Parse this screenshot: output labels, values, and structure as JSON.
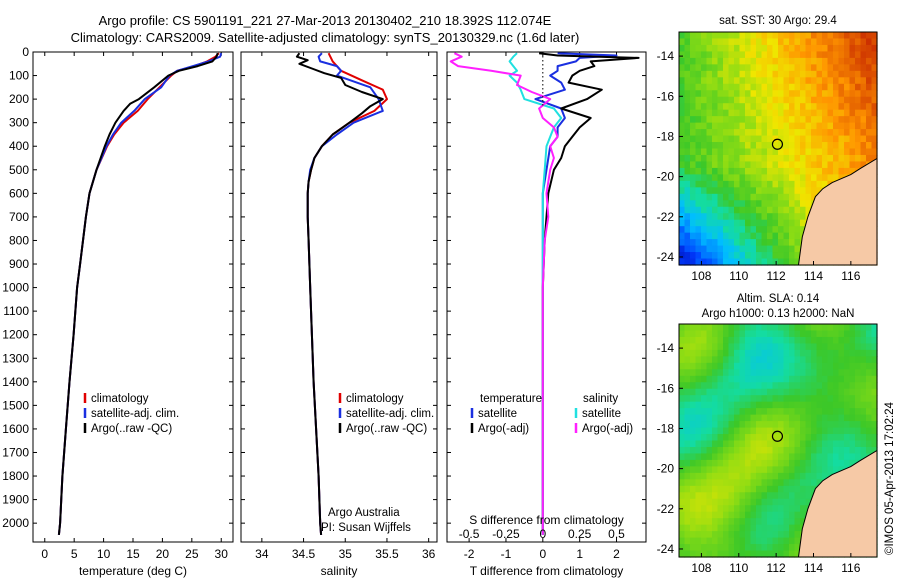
{
  "header": {
    "line1": "Argo profile: CS 5901191_221 27-Mar-2013 20130402_210 18.392S 112.074E",
    "line2": "Climatology: CARS2009. Satellite-adjusted climatology: synTS_20130329.nc (1.6d later)"
  },
  "colors": {
    "clim": "#e00000",
    "sat": "#1a2fe0",
    "argo": "#000000",
    "argo_s_adj": "#ff20ff",
    "sat_s": "#20e0e0"
  },
  "chart_data": [
    {
      "type": "line",
      "id": "temperature",
      "xlabel": "temperature (deg C)",
      "ylim": [
        0,
        2080
      ],
      "xlim": [
        -2,
        32
      ],
      "xticks": [
        0,
        5,
        10,
        15,
        20,
        25,
        30
      ],
      "yticks": [
        0,
        100,
        200,
        300,
        400,
        500,
        600,
        700,
        800,
        900,
        1000,
        1100,
        1200,
        1300,
        1400,
        1500,
        1600,
        1700,
        1800,
        1900,
        2000
      ],
      "legend": [
        "climatology",
        "satellite-adj. clim.",
        "Argo(..raw -QC)"
      ],
      "series": [
        {
          "name": "climatology",
          "color": "clim",
          "depth": [
            5,
            20,
            40,
            60,
            80,
            100,
            150,
            200,
            250,
            300,
            350,
            400,
            500,
            600,
            700,
            800,
            900,
            1000,
            1200,
            1400,
            1600,
            1800,
            2000,
            2050
          ],
          "values": [
            29.6,
            29.0,
            27.6,
            25.5,
            22.5,
            21.5,
            19.5,
            17.5,
            15.8,
            13.4,
            11.8,
            10.6,
            8.8,
            7.6,
            7.0,
            6.5,
            6.0,
            5.5,
            4.9,
            4.2,
            3.6,
            3.0,
            2.6,
            2.4
          ]
        },
        {
          "name": "satellite-adj. clim.",
          "color": "sat",
          "depth": [
            5,
            20,
            40,
            60,
            80,
            100,
            150,
            200,
            250,
            300,
            350,
            400,
            500,
            600,
            700,
            800,
            900,
            1000,
            1200,
            1400,
            1600,
            1800,
            2000,
            2050
          ],
          "values": [
            30.0,
            29.8,
            27.8,
            25.2,
            22.5,
            21.2,
            19.8,
            17.0,
            15.2,
            13.0,
            11.6,
            10.5,
            8.8,
            7.6,
            7.0,
            6.5,
            6.0,
            5.5,
            4.9,
            4.2,
            3.6,
            3.0,
            2.6,
            2.4
          ]
        },
        {
          "name": "Argo(..raw -QC)",
          "color": "argo",
          "depth": [
            5,
            20,
            40,
            60,
            80,
            100,
            150,
            200,
            220,
            250,
            300,
            350,
            400,
            500,
            600,
            700,
            800,
            900,
            1000,
            1200,
            1400,
            1600,
            1800,
            2000,
            2050
          ],
          "values": [
            29.4,
            29.2,
            28.5,
            26.0,
            22.8,
            21.0,
            18.6,
            16.0,
            14.5,
            13.4,
            12.0,
            11.0,
            10.2,
            8.8,
            7.6,
            7.0,
            6.5,
            6.0,
            5.5,
            4.9,
            4.2,
            3.6,
            3.0,
            2.6,
            2.4
          ]
        }
      ]
    },
    {
      "type": "line",
      "id": "salinity",
      "xlabel": "salinity",
      "ylim": [
        0,
        2080
      ],
      "xlim": [
        33.75,
        36.1
      ],
      "xticks": [
        34,
        34.5,
        35,
        35.5,
        36
      ],
      "legend": [
        "climatology",
        "satellite-adj. clim.",
        "Argo(..raw -QC)"
      ],
      "series": [
        {
          "name": "climatology",
          "color": "clim",
          "depth": [
            5,
            40,
            80,
            120,
            160,
            200,
            250,
            300,
            350,
            400,
            450,
            500,
            550,
            600,
            700,
            800,
            1000,
            1200,
            1400,
            1600,
            1800,
            2000,
            2050
          ],
          "values": [
            34.8,
            34.85,
            34.95,
            35.2,
            35.45,
            35.5,
            35.35,
            35.05,
            34.85,
            34.72,
            34.63,
            34.59,
            34.56,
            34.55,
            34.55,
            34.56,
            34.58,
            34.6,
            34.62,
            34.65,
            34.68,
            34.7,
            34.71
          ]
        },
        {
          "name": "satellite-adj. clim.",
          "color": "sat",
          "depth": [
            5,
            20,
            40,
            60,
            80,
            100,
            150,
            200,
            250,
            300,
            350,
            400,
            450,
            500,
            550,
            600,
            700,
            800,
            1000,
            1200,
            1400,
            1600,
            1800,
            2000,
            2050
          ],
          "values": [
            34.72,
            34.68,
            34.7,
            34.9,
            34.95,
            34.9,
            35.3,
            35.4,
            35.45,
            35.1,
            34.9,
            34.72,
            34.63,
            34.58,
            34.56,
            34.55,
            34.55,
            34.56,
            34.58,
            34.6,
            34.62,
            34.65,
            34.68,
            34.7,
            34.71
          ]
        },
        {
          "name": "Argo(..raw -QC)",
          "color": "argo",
          "depth": [
            5,
            20,
            35,
            50,
            70,
            90,
            110,
            140,
            170,
            200,
            230,
            260,
            300,
            350,
            400,
            450,
            500,
            550,
            600,
            700,
            800,
            900,
            1000,
            1200,
            1400,
            1600,
            1800,
            2000,
            2050
          ],
          "values": [
            34.45,
            34.42,
            34.55,
            34.45,
            34.6,
            34.75,
            34.95,
            35.0,
            35.2,
            35.45,
            35.3,
            35.2,
            35.05,
            34.85,
            34.72,
            34.63,
            34.59,
            34.56,
            34.55,
            34.55,
            34.56,
            34.57,
            34.58,
            34.6,
            34.62,
            34.65,
            34.68,
            34.7,
            34.71
          ]
        }
      ]
    },
    {
      "type": "line",
      "id": "differences",
      "xlabel": "T difference from climatology",
      "xlabel2": "S difference from climatology",
      "ylim": [
        0,
        2080
      ],
      "xlim": [
        -2.6,
        2.8
      ],
      "xticks": [
        -2,
        -1,
        0,
        1,
        2
      ],
      "xticks2_labels": [
        "-0.5",
        "-0.25",
        "0",
        "0.25",
        "0.5"
      ],
      "xticks2_pos": [
        -2,
        -1,
        0,
        1,
        2
      ],
      "legend_t_title": "temperature",
      "legend_s_title": "salinity",
      "legend_t": [
        "satellite",
        "Argo(-adj)"
      ],
      "legend_s": [
        "satellite",
        "Argo(-adj)"
      ],
      "series": [
        {
          "name": "T satellite",
          "color": "sat",
          "depth": [
            5,
            15,
            25,
            40,
            60,
            80,
            100,
            130,
            160,
            200,
            240,
            280,
            320,
            360,
            400,
            500,
            600,
            800,
            1000,
            1400,
            2000,
            2050
          ],
          "values": [
            0.4,
            2.0,
            1.0,
            0.9,
            0.4,
            0.4,
            0.2,
            0.5,
            0.6,
            -0.2,
            0.5,
            0.6,
            0.4,
            0.4,
            0.2,
            0.1,
            0.0,
            0.0,
            0.0,
            0.0,
            0.0,
            0.0
          ]
        },
        {
          "name": "T Argo(-adj)",
          "color": "argo",
          "depth": [
            5,
            15,
            25,
            40,
            60,
            80,
            100,
            130,
            160,
            200,
            240,
            280,
            320,
            360,
            400,
            450,
            500,
            600,
            800,
            1000,
            1400,
            2000,
            2050
          ],
          "values": [
            -0.1,
            0.4,
            2.6,
            1.3,
            1.4,
            1.0,
            0.8,
            0.7,
            1.6,
            1.2,
            0.5,
            1.3,
            1.0,
            0.8,
            0.6,
            0.5,
            0.3,
            0.15,
            0.05,
            0.0,
            0.0,
            0.0,
            0.0
          ]
        },
        {
          "name": "S satellite",
          "color": "sat_s",
          "depth": [
            5,
            20,
            40,
            60,
            80,
            100,
            130,
            160,
            200,
            240,
            280,
            320,
            360,
            400,
            500,
            600,
            800,
            1000,
            1400,
            2000,
            2050
          ],
          "values": [
            -0.7,
            -0.8,
            -0.9,
            -0.8,
            -0.7,
            -0.9,
            -0.7,
            -0.6,
            -0.5,
            0.3,
            0.5,
            0.3,
            0.2,
            0.1,
            0.05,
            0.0,
            0.0,
            0.0,
            0.0,
            0.0,
            0.0
          ]
        },
        {
          "name": "S Argo(-adj)",
          "color": "argo_s_adj",
          "depth": [
            5,
            20,
            40,
            60,
            80,
            100,
            140,
            170,
            200,
            240,
            280,
            320,
            360,
            400,
            450,
            500,
            600,
            700,
            800,
            1000,
            1400,
            2000,
            2050
          ],
          "values": [
            -2.4,
            -2.2,
            -2.5,
            -2.3,
            -1.4,
            -0.6,
            -0.7,
            -0.3,
            0.2,
            -0.1,
            0.0,
            0.3,
            0.4,
            0.2,
            0.3,
            0.2,
            0.1,
            0.15,
            0.05,
            0.0,
            0.0,
            0.0,
            0.0
          ]
        }
      ]
    },
    {
      "type": "heatmap",
      "id": "sst-map",
      "title": "sat. SST: 30 Argo: 29.4",
      "xticks": [
        108,
        110,
        112,
        114,
        116
      ],
      "yticks": [
        -14,
        -16,
        -18,
        -20,
        -22,
        -24
      ],
      "xlim": [
        106.8,
        117.4
      ],
      "ylim": [
        -24.4,
        -12.8
      ],
      "marker": {
        "lon": 112.07,
        "lat": -18.39
      }
    },
    {
      "type": "heatmap",
      "id": "sla-map",
      "title1": "Altim. SLA: 0.14",
      "title2": "Argo h1000: 0.13 h2000: NaN",
      "xticks": [
        108,
        110,
        112,
        114,
        116
      ],
      "yticks": [
        -14,
        -16,
        -18,
        -20,
        -22,
        -24
      ],
      "xlim": [
        106.8,
        117.4
      ],
      "ylim": [
        -24.4,
        -12.8
      ],
      "marker": {
        "lon": 112.07,
        "lat": -18.39
      }
    }
  ],
  "panel_text": {
    "credit1": "Argo Australia",
    "credit2": "PI: Susan Wijffels",
    "stamp": "©IMOS 05-Apr-2013 17:02:24"
  }
}
